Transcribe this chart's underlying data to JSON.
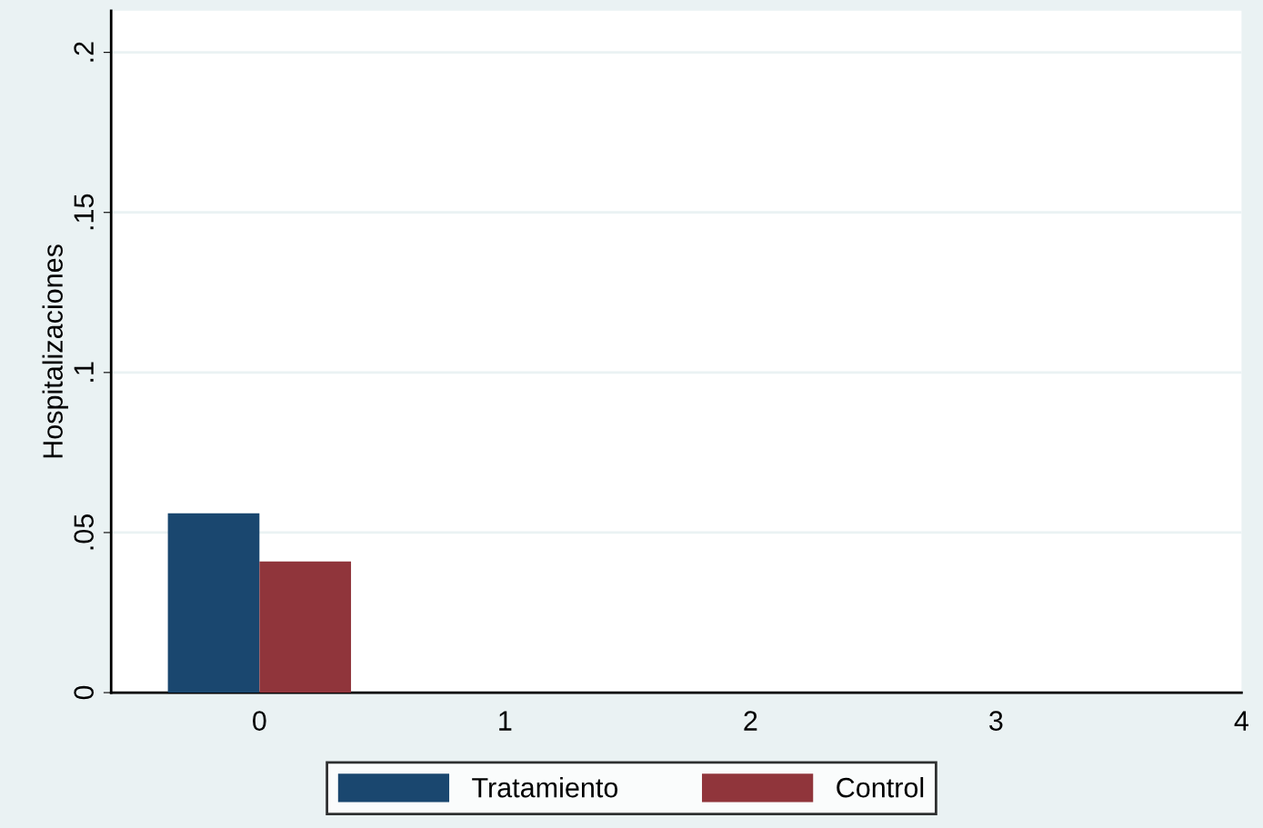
{
  "chart_data": {
    "type": "bar",
    "ylabel": "Hospitalizaciones",
    "categories": [
      "0",
      "1",
      "2",
      "3",
      "4"
    ],
    "series": [
      {
        "name": "Tratamiento",
        "color": "#1a476f",
        "values": [
          0.056,
          null,
          null,
          null,
          null
        ]
      },
      {
        "name": "Control",
        "color": "#90353b",
        "values": [
          0.041,
          null,
          null,
          null,
          null
        ]
      }
    ],
    "ylim": [
      0,
      0.213
    ],
    "yticks": [
      {
        "value": 0,
        "label": "0"
      },
      {
        "value": 0.05,
        "label": ".05"
      },
      {
        "value": 0.1,
        "label": ".1"
      },
      {
        "value": 0.15,
        "label": ".15"
      },
      {
        "value": 0.2,
        "label": ".2"
      }
    ],
    "grid": "y",
    "legend": "bottom"
  }
}
